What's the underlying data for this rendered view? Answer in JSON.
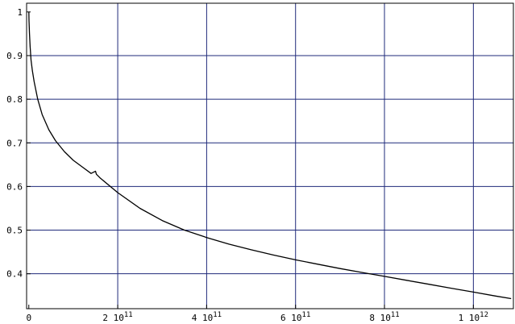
{
  "chart_data": {
    "type": "line",
    "title": "",
    "xlabel": "",
    "ylabel": "",
    "xlim": [
      -5000000000.0,
      1090000000000.0
    ],
    "ylim": [
      0.32,
      1.02
    ],
    "x_scale": "linear",
    "y_scale": "linear",
    "grid": {
      "x": true,
      "y": true
    },
    "x_ticks": [
      {
        "value": 0,
        "label": "0",
        "exp": ""
      },
      {
        "value": 200000000000,
        "label": "2  10",
        "exp": "11"
      },
      {
        "value": 400000000000,
        "label": "4  10",
        "exp": "11"
      },
      {
        "value": 600000000000,
        "label": "6  10",
        "exp": "11"
      },
      {
        "value": 800000000000,
        "label": "8  10",
        "exp": "11"
      },
      {
        "value": 1000000000000,
        "label": "1  10",
        "exp": "12"
      }
    ],
    "y_ticks": [
      {
        "value": 0.4,
        "label": "0.4"
      },
      {
        "value": 0.5,
        "label": "0.5"
      },
      {
        "value": 0.6,
        "label": "0.6"
      },
      {
        "value": 0.7,
        "label": "0.7"
      },
      {
        "value": 0.8,
        "label": "0.8"
      },
      {
        "value": 0.9,
        "label": "0.9"
      },
      {
        "value": 1.0,
        "label": "1"
      }
    ],
    "series": [
      {
        "color": "#000000",
        "x": [
          0,
          500000000,
          1500000000,
          3000000000,
          5000000000,
          8000000000,
          12000000000,
          20000000000,
          30000000000,
          45000000000,
          60000000000,
          80000000000,
          100000000000,
          120000000000,
          140000000000,
          150000000000,
          152000000000,
          160000000000,
          200000000000,
          250000000000,
          300000000000,
          350000000000,
          400000000000,
          450000000000,
          500000000000,
          550000000000,
          600000000000,
          650000000000,
          700000000000,
          750000000000,
          800000000000,
          850000000000,
          900000000000,
          950000000000,
          1000000000000,
          1050000000000,
          1085000000000
        ],
        "y": [
          1.0,
          0.98,
          0.95,
          0.92,
          0.89,
          0.865,
          0.84,
          0.8,
          0.765,
          0.73,
          0.705,
          0.68,
          0.66,
          0.645,
          0.63,
          0.635,
          0.628,
          0.62,
          0.586,
          0.55,
          0.522,
          0.5,
          0.483,
          0.468,
          0.455,
          0.443,
          0.432,
          0.422,
          0.412,
          0.403,
          0.394,
          0.385,
          0.376,
          0.367,
          0.358,
          0.349,
          0.343
        ]
      }
    ]
  }
}
